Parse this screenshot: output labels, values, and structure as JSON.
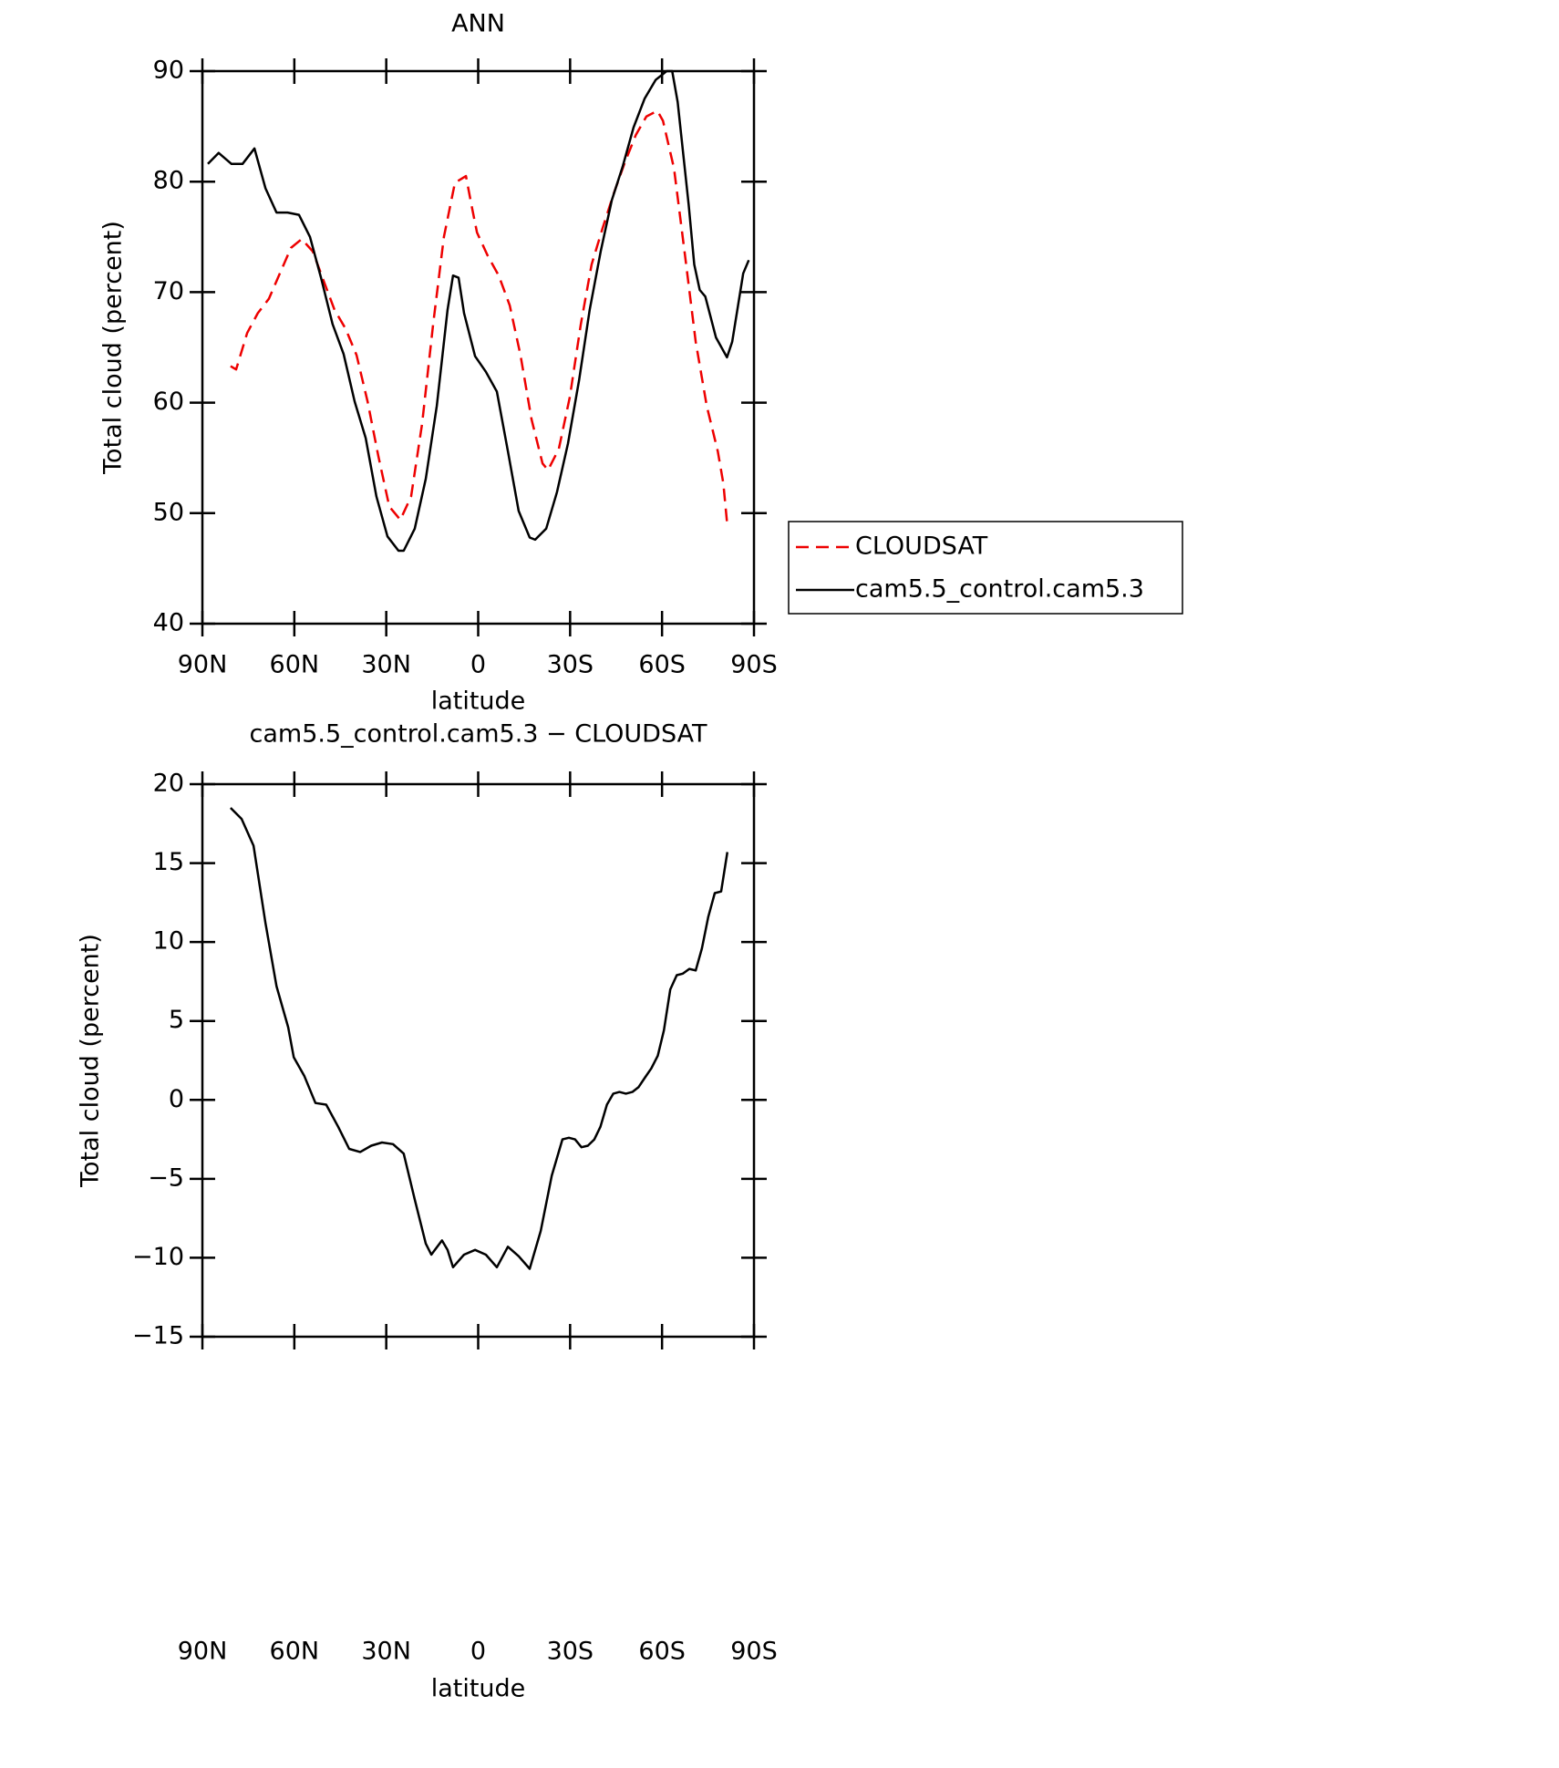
{
  "chart_data": [
    {
      "type": "line",
      "title": "ANN",
      "xlabel": "latitude",
      "ylabel": "Total cloud (percent)",
      "xlim": [
        90,
        -90
      ],
      "xticks": [
        {
          "value": 90,
          "label": "90N"
        },
        {
          "value": 60,
          "label": "60N"
        },
        {
          "value": 30,
          "label": "30N"
        },
        0,
        {
          "value": -30,
          "label": "30S"
        },
        {
          "value": -60,
          "label": "60S"
        },
        {
          "value": -90,
          "label": "90S"
        }
      ],
      "ylim": [
        40,
        90
      ],
      "yticks": [
        40,
        50,
        60,
        70,
        80,
        90
      ],
      "legend": "right",
      "series": [
        {
          "name": "CLOUDSAT",
          "color": "#ee0000",
          "dashed": true,
          "x": [
            80.8,
            79.0,
            75.4,
            71.9,
            68.3,
            64.7,
            61.1,
            57.6,
            54.0,
            50.4,
            46.9,
            43.3,
            39.7,
            36.1,
            32.6,
            29.0,
            25.4,
            21.9,
            18.3,
            14.7,
            11.2,
            7.6,
            4.0,
            2.2,
            0.4,
            -3.1,
            -6.7,
            -10.3,
            -13.8,
            -17.4,
            -21.0,
            -22.8,
            -26.3,
            -29.9,
            -33.5,
            -37.0,
            -40.6,
            -44.2,
            -47.8,
            -51.4,
            -54.9,
            -58.5,
            -60.3,
            -63.9,
            -67.5,
            -71.0,
            -74.6,
            -78.2,
            -80.0,
            -81.2
          ],
          "values": [
            63.3,
            63.0,
            66.3,
            68.1,
            69.4,
            71.7,
            74.0,
            74.8,
            73.7,
            71.0,
            68.4,
            66.7,
            64.3,
            60.1,
            55.2,
            50.6,
            49.4,
            51.5,
            58.1,
            67.1,
            75.0,
            79.9,
            80.5,
            77.9,
            75.4,
            73.3,
            71.5,
            68.8,
            64.3,
            58.5,
            54.5,
            53.9,
            55.8,
            60.5,
            67.1,
            72.5,
            75.8,
            78.9,
            81.7,
            84.2,
            85.9,
            86.4,
            85.5,
            81.2,
            73.3,
            65.5,
            59.7,
            55.6,
            52.7,
            49.2
          ]
        },
        {
          "name": "cam5.5_control.cam5.3",
          "color": "#000000",
          "dashed": false,
          "x": [
            88.2,
            84.7,
            80.5,
            76.9,
            73.0,
            69.4,
            65.8,
            62.2,
            58.5,
            54.9,
            51.3,
            47.5,
            43.9,
            40.3,
            36.7,
            33.2,
            29.6,
            26.0,
            24.3,
            20.7,
            17.1,
            13.5,
            10.0,
            8.2,
            6.4,
            4.6,
            1.0,
            -2.5,
            -6.1,
            -9.7,
            -13.2,
            -16.8,
            -18.6,
            -22.2,
            -25.7,
            -29.3,
            -32.9,
            -36.4,
            -40.0,
            -43.6,
            -47.2,
            -50.7,
            -54.3,
            -57.9,
            -61.5,
            -63.3,
            -65.1,
            -68.7,
            -70.5,
            -72.3,
            -74.1,
            -77.6,
            -81.2,
            -82.9,
            -86.5,
            -88.3
          ],
          "values": [
            81.6,
            82.6,
            81.6,
            81.6,
            83.0,
            79.4,
            77.2,
            77.2,
            77.0,
            75.0,
            71.3,
            67.1,
            64.4,
            60.1,
            56.8,
            51.5,
            47.9,
            46.6,
            46.6,
            48.6,
            53.1,
            59.7,
            68.4,
            71.5,
            71.3,
            68.1,
            64.2,
            62.8,
            61.0,
            55.6,
            50.2,
            47.8,
            47.6,
            48.6,
            51.9,
            56.3,
            62.0,
            68.4,
            73.7,
            78.3,
            81.4,
            84.9,
            87.5,
            89.2,
            90,
            90,
            87.2,
            77.9,
            72.5,
            70.2,
            69.6,
            65.9,
            64.1,
            65.5,
            71.7,
            72.9
          ]
        }
      ]
    },
    {
      "type": "line",
      "title": "cam5.5_control.cam5.3 − CLOUDSAT",
      "xlabel": "latitude",
      "ylabel": "Total cloud (percent)",
      "xlim": [
        90,
        -90
      ],
      "xticks": [
        {
          "value": 90,
          "label": "90N"
        },
        {
          "value": 60,
          "label": "60N"
        },
        {
          "value": 30,
          "label": "30N"
        },
        0,
        {
          "value": -30,
          "label": "30S"
        },
        {
          "value": -60,
          "label": "60S"
        },
        {
          "value": -90,
          "label": "90S"
        }
      ],
      "ylim": [
        -15,
        20
      ],
      "yticks": [
        {
          "value": -15,
          "label": "−15"
        },
        {
          "value": -10,
          "label": "−10"
        },
        {
          "value": -5,
          "label": "−5"
        },
        0,
        5,
        10,
        15,
        20
      ],
      "series": [
        {
          "color": "#000000",
          "dashed": false,
          "x": [
            80.8,
            77.2,
            73.3,
            69.4,
            65.8,
            62.0,
            60.2,
            56.7,
            53.1,
            49.6,
            45.7,
            42.1,
            38.5,
            34.9,
            31.4,
            27.8,
            24.3,
            20.7,
            17.1,
            15.3,
            11.8,
            10.0,
            8.2,
            4.6,
            1.0,
            -2.5,
            -6.1,
            -9.7,
            -13.2,
            -16.8,
            -20.4,
            -24.0,
            -27.5,
            -29.6,
            -31.6,
            -33.7,
            -35.8,
            -37.9,
            -39.9,
            -42.0,
            -44.1,
            -46.1,
            -48.2,
            -50.3,
            -52.3,
            -54.4,
            -56.5,
            -58.6,
            -60.6,
            -62.7,
            -64.8,
            -66.8,
            -68.9,
            -71.0,
            -73.0,
            -75.1,
            -77.2,
            -79.3,
            -81.3
          ],
          "values": [
            18.5,
            17.8,
            16.1,
            11.2,
            7.2,
            4.6,
            2.7,
            1.5,
            -0.2,
            -0.3,
            -1.7,
            -3.1,
            -3.3,
            -2.9,
            -2.7,
            -2.8,
            -3.4,
            -6.3,
            -9.1,
            -9.8,
            -8.9,
            -9.5,
            -10.6,
            -9.8,
            -9.5,
            -9.8,
            -10.6,
            -9.3,
            -9.9,
            -10.7,
            -8.3,
            -4.8,
            -2.5,
            -2.4,
            -2.5,
            -3.0,
            -2.9,
            -2.5,
            -1.7,
            -0.3,
            0.4,
            0.5,
            0.4,
            0.5,
            0.8,
            1.4,
            2.0,
            2.8,
            4.4,
            7.0,
            7.9,
            8.0,
            8.3,
            8.2,
            9.6,
            11.6,
            13.1,
            13.2,
            15.7
          ]
        }
      ]
    }
  ]
}
